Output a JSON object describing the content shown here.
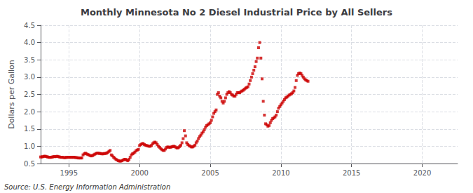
{
  "chart_data": {
    "type": "scatter",
    "title": "Monthly Minnesota No 2 Diesel Industrial Price by All Sellers",
    "ylabel": "Dollars per Gallon",
    "annotation": "Source: U.S. Energy Information Administration",
    "color": "#cc0000",
    "marker": "square",
    "grid": true,
    "xlim": [
      1993.0,
      2022.5
    ],
    "ylim": [
      0.5,
      4.5
    ],
    "xticks": [
      1995,
      2000,
      2005,
      2010,
      2015,
      2020
    ],
    "yticks": [
      0.5,
      {
        "value": 1.0,
        "label": "1.0"
      },
      1.5,
      {
        "value": 2.0,
        "label": "2.0"
      },
      2.5,
      {
        "value": 3.0,
        "label": "3.0"
      },
      3.5,
      {
        "value": 4.0,
        "label": "4.0"
      },
      4.5
    ],
    "x": [
      1993.0,
      1993.083,
      1993.167,
      1993.25,
      1993.333,
      1993.417,
      1993.5,
      1993.583,
      1993.667,
      1993.75,
      1993.833,
      1993.917,
      1994.0,
      1994.083,
      1994.167,
      1994.25,
      1994.333,
      1994.417,
      1994.5,
      1994.583,
      1994.667,
      1994.75,
      1994.833,
      1994.917,
      1995.0,
      1995.083,
      1995.167,
      1995.25,
      1995.333,
      1995.417,
      1995.5,
      1995.583,
      1995.667,
      1995.75,
      1995.833,
      1995.917,
      1996.0,
      1996.083,
      1996.167,
      1996.25,
      1996.333,
      1996.417,
      1996.5,
      1996.583,
      1996.667,
      1996.75,
      1996.833,
      1996.917,
      1997.0,
      1997.083,
      1997.167,
      1997.25,
      1997.333,
      1997.417,
      1997.5,
      1997.583,
      1997.667,
      1997.75,
      1997.833,
      1997.917,
      1998.0,
      1998.083,
      1998.167,
      1998.25,
      1998.333,
      1998.417,
      1998.5,
      1998.583,
      1998.667,
      1998.75,
      1998.833,
      1998.917,
      1999.0,
      1999.083,
      1999.167,
      1999.25,
      1999.333,
      1999.417,
      1999.5,
      1999.583,
      1999.667,
      1999.75,
      1999.833,
      1999.917,
      2000.0,
      2000.083,
      2000.167,
      2000.25,
      2000.333,
      2000.417,
      2000.5,
      2000.583,
      2000.667,
      2000.75,
      2000.833,
      2000.917,
      2001.0,
      2001.083,
      2001.167,
      2001.25,
      2001.333,
      2001.417,
      2001.5,
      2001.583,
      2001.667,
      2001.75,
      2001.833,
      2001.917,
      2002.0,
      2002.083,
      2002.167,
      2002.25,
      2002.333,
      2002.417,
      2002.5,
      2002.583,
      2002.667,
      2002.75,
      2002.833,
      2002.917,
      2003.0,
      2003.083,
      2003.167,
      2003.25,
      2003.333,
      2003.417,
      2003.5,
      2003.583,
      2003.667,
      2003.75,
      2003.833,
      2003.917,
      2004.0,
      2004.083,
      2004.167,
      2004.25,
      2004.333,
      2004.417,
      2004.5,
      2004.583,
      2004.667,
      2004.75,
      2004.833,
      2004.917,
      2005.0,
      2005.083,
      2005.167,
      2005.25,
      2005.333,
      2005.417,
      2005.5,
      2005.583,
      2005.667,
      2005.75,
      2005.833,
      2005.917,
      2006.0,
      2006.083,
      2006.167,
      2006.25,
      2006.333,
      2006.417,
      2006.5,
      2006.583,
      2006.667,
      2006.75,
      2006.833,
      2006.917,
      2007.0,
      2007.083,
      2007.167,
      2007.25,
      2007.333,
      2007.417,
      2007.5,
      2007.583,
      2007.667,
      2007.75,
      2007.833,
      2007.917,
      2008.0,
      2008.083,
      2008.167,
      2008.25,
      2008.333,
      2008.417,
      2008.5,
      2008.583,
      2008.667,
      2008.75,
      2008.833,
      2008.917,
      2009.0,
      2009.083,
      2009.167,
      2009.25,
      2009.333,
      2009.417,
      2009.5,
      2009.583,
      2009.667,
      2009.75,
      2009.833,
      2009.917,
      2010.0,
      2010.083,
      2010.167,
      2010.25,
      2010.333,
      2010.417,
      2010.5,
      2010.583,
      2010.667,
      2010.75,
      2010.833,
      2010.917,
      2011.0,
      2011.083,
      2011.167,
      2011.25,
      2011.333,
      2011.417,
      2011.5,
      2011.583,
      2011.667,
      2011.75,
      2011.833,
      2011.917
    ],
    "values": [
      0.69,
      0.69,
      0.7,
      0.71,
      0.71,
      0.7,
      0.69,
      0.68,
      0.68,
      0.68,
      0.69,
      0.7,
      0.7,
      0.7,
      0.71,
      0.7,
      0.69,
      0.68,
      0.68,
      0.68,
      0.67,
      0.67,
      0.68,
      0.68,
      0.68,
      0.68,
      0.68,
      0.68,
      0.68,
      0.68,
      0.67,
      0.67,
      0.66,
      0.66,
      0.66,
      0.66,
      0.75,
      0.78,
      0.8,
      0.78,
      0.76,
      0.75,
      0.73,
      0.72,
      0.73,
      0.75,
      0.77,
      0.79,
      0.8,
      0.8,
      0.79,
      0.79,
      0.78,
      0.78,
      0.79,
      0.79,
      0.8,
      0.82,
      0.85,
      0.88,
      0.75,
      0.72,
      0.68,
      0.65,
      0.62,
      0.6,
      0.58,
      0.57,
      0.57,
      0.58,
      0.6,
      0.62,
      0.62,
      0.6,
      0.58,
      0.62,
      0.68,
      0.75,
      0.78,
      0.8,
      0.83,
      0.87,
      0.89,
      0.91,
      1.02,
      1.05,
      1.07,
      1.08,
      1.05,
      1.03,
      1.02,
      1.01,
      1.0,
      1.0,
      1.02,
      1.07,
      1.1,
      1.12,
      1.1,
      1.05,
      1.0,
      0.97,
      0.93,
      0.9,
      0.88,
      0.88,
      0.92,
      0.97,
      0.98,
      0.97,
      0.97,
      0.98,
      0.99,
      1.0,
      0.99,
      0.96,
      0.95,
      0.96,
      0.99,
      1.03,
      1.1,
      1.22,
      1.45,
      1.3,
      1.1,
      1.05,
      1.02,
      1.0,
      0.98,
      0.98,
      1.0,
      1.03,
      1.1,
      1.15,
      1.22,
      1.28,
      1.32,
      1.38,
      1.42,
      1.48,
      1.55,
      1.6,
      1.62,
      1.65,
      1.68,
      1.75,
      1.85,
      1.95,
      2.0,
      2.05,
      2.5,
      2.55,
      2.45,
      2.4,
      2.3,
      2.25,
      2.3,
      2.4,
      2.5,
      2.55,
      2.58,
      2.55,
      2.5,
      2.48,
      2.45,
      2.45,
      2.5,
      2.55,
      2.55,
      2.55,
      2.58,
      2.6,
      2.62,
      2.65,
      2.68,
      2.7,
      2.72,
      2.8,
      2.9,
      3.0,
      3.1,
      3.2,
      3.3,
      3.45,
      3.55,
      3.85,
      4.0,
      3.55,
      2.95,
      2.3,
      1.9,
      1.65,
      1.62,
      1.58,
      1.6,
      1.68,
      1.75,
      1.8,
      1.82,
      1.85,
      1.9,
      2.0,
      2.1,
      2.15,
      2.2,
      2.25,
      2.3,
      2.35,
      2.4,
      2.42,
      2.45,
      2.48,
      2.5,
      2.52,
      2.55,
      2.6,
      2.7,
      2.9,
      3.05,
      3.1,
      3.12,
      3.1,
      3.05,
      3.0,
      2.95,
      2.92,
      2.9,
      2.88
    ]
  }
}
